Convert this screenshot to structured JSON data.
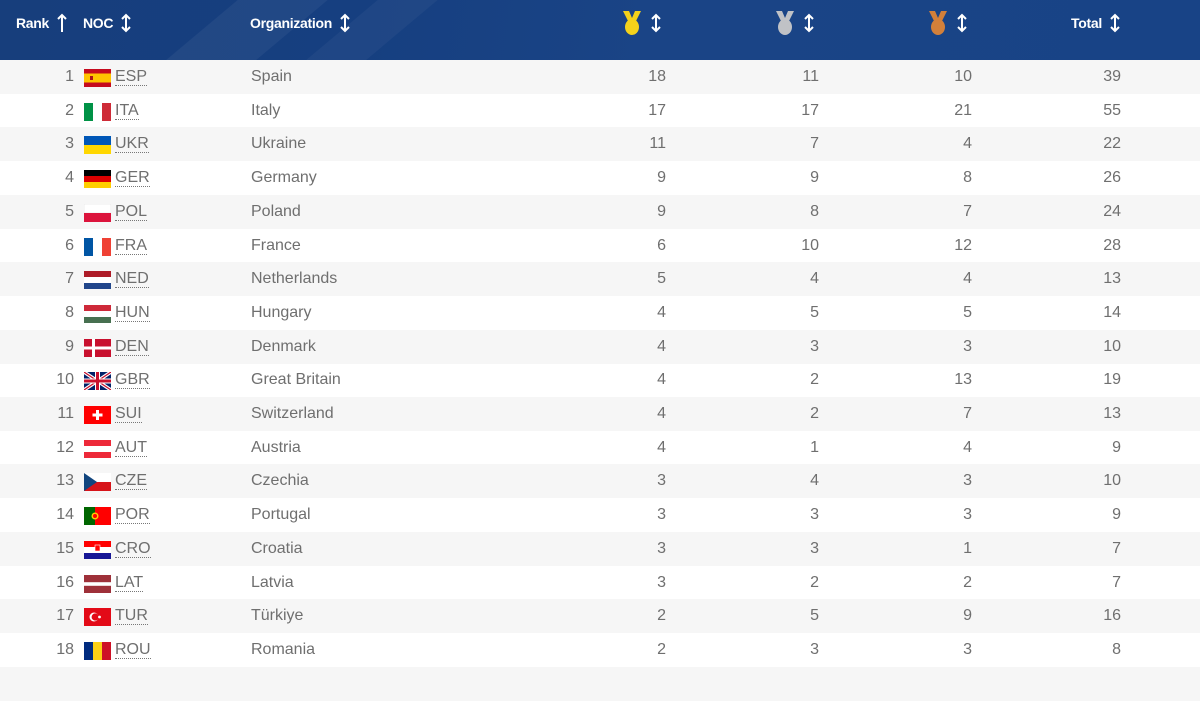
{
  "header": {
    "rank_label": "Rank",
    "noc_label": "NOC",
    "org_label": "Organization",
    "gold_icon": "gold-medal-icon",
    "silver_icon": "silver-medal-icon",
    "bronze_icon": "bronze-medal-icon",
    "total_label": "Total",
    "rank_sort_icon": "arrow-up-icon",
    "sort_icon": "sort-up-down-icon"
  },
  "colors": {
    "header_bg": "#173e7c",
    "gold": "#f4d21b",
    "silver": "#c0c0c0",
    "bronze": "#cd7f32",
    "row_alt": "#f6f6f6",
    "text": "#6f6f6f"
  },
  "rows": [
    {
      "rank": "1",
      "noc": "ESP",
      "org": "Spain",
      "gold": "18",
      "silver": "11",
      "bronze": "10",
      "total": "39"
    },
    {
      "rank": "2",
      "noc": "ITA",
      "org": "Italy",
      "gold": "17",
      "silver": "17",
      "bronze": "21",
      "total": "55"
    },
    {
      "rank": "3",
      "noc": "UKR",
      "org": "Ukraine",
      "gold": "11",
      "silver": "7",
      "bronze": "4",
      "total": "22"
    },
    {
      "rank": "4",
      "noc": "GER",
      "org": "Germany",
      "gold": "9",
      "silver": "9",
      "bronze": "8",
      "total": "26"
    },
    {
      "rank": "5",
      "noc": "POL",
      "org": "Poland",
      "gold": "9",
      "silver": "8",
      "bronze": "7",
      "total": "24"
    },
    {
      "rank": "6",
      "noc": "FRA",
      "org": "France",
      "gold": "6",
      "silver": "10",
      "bronze": "12",
      "total": "28"
    },
    {
      "rank": "7",
      "noc": "NED",
      "org": "Netherlands",
      "gold": "5",
      "silver": "4",
      "bronze": "4",
      "total": "13"
    },
    {
      "rank": "8",
      "noc": "HUN",
      "org": "Hungary",
      "gold": "4",
      "silver": "5",
      "bronze": "5",
      "total": "14"
    },
    {
      "rank": "9",
      "noc": "DEN",
      "org": "Denmark",
      "gold": "4",
      "silver": "3",
      "bronze": "3",
      "total": "10"
    },
    {
      "rank": "10",
      "noc": "GBR",
      "org": "Great Britain",
      "gold": "4",
      "silver": "2",
      "bronze": "13",
      "total": "19"
    },
    {
      "rank": "11",
      "noc": "SUI",
      "org": "Switzerland",
      "gold": "4",
      "silver": "2",
      "bronze": "7",
      "total": "13"
    },
    {
      "rank": "12",
      "noc": "AUT",
      "org": "Austria",
      "gold": "4",
      "silver": "1",
      "bronze": "4",
      "total": "9"
    },
    {
      "rank": "13",
      "noc": "CZE",
      "org": "Czechia",
      "gold": "3",
      "silver": "4",
      "bronze": "3",
      "total": "10"
    },
    {
      "rank": "14",
      "noc": "POR",
      "org": "Portugal",
      "gold": "3",
      "silver": "3",
      "bronze": "3",
      "total": "9"
    },
    {
      "rank": "15",
      "noc": "CRO",
      "org": "Croatia",
      "gold": "3",
      "silver": "3",
      "bronze": "1",
      "total": "7"
    },
    {
      "rank": "16",
      "noc": "LAT",
      "org": "Latvia",
      "gold": "3",
      "silver": "2",
      "bronze": "2",
      "total": "7"
    },
    {
      "rank": "17",
      "noc": "TUR",
      "org": "Türkiye",
      "gold": "2",
      "silver": "5",
      "bronze": "9",
      "total": "16"
    },
    {
      "rank": "18",
      "noc": "ROU",
      "org": "Romania",
      "gold": "2",
      "silver": "3",
      "bronze": "3",
      "total": "8"
    }
  ]
}
